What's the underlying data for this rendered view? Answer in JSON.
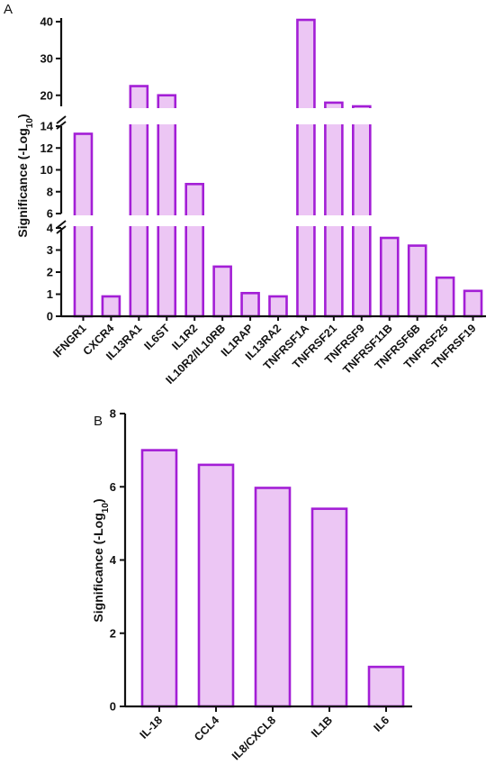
{
  "chart_data": [
    {
      "panel": "A",
      "type": "bar",
      "ylabel": "Significance (-Log10)",
      "broken_axis": true,
      "segments": [
        {
          "ylim": [
            0,
            4
          ],
          "ticks": [
            0,
            1,
            2,
            3,
            4
          ]
        },
        {
          "ylim": [
            6,
            14
          ],
          "ticks": [
            6,
            8,
            10,
            12,
            14
          ]
        },
        {
          "ylim": [
            17,
            41
          ],
          "ticks": [
            20,
            30,
            40
          ]
        }
      ],
      "categories": [
        "IFNGR1",
        "CXCR4",
        "IL13RA1",
        "IL6ST",
        "IL1R2",
        "IL10R2/IL10RB",
        "IL1RAP",
        "IL13RA2",
        "TNFRSF1A",
        "TNFRSF21",
        "TNFRSF9",
        "TNFRSF11B",
        "TNFRSF6B",
        "TNFRSF25",
        "TNFRSF19"
      ],
      "values": [
        13.3,
        0.9,
        22.5,
        20.0,
        8.7,
        2.25,
        1.05,
        0.9,
        40.5,
        18.0,
        17.0,
        3.55,
        3.2,
        1.75,
        1.15
      ],
      "bar_fill": "#ecc6f4",
      "bar_stroke": "#a31ed6"
    },
    {
      "panel": "B",
      "type": "bar",
      "ylabel": "Significance (-Log10)",
      "ylim": [
        0,
        8
      ],
      "ticks": [
        0,
        2,
        4,
        6,
        8
      ],
      "categories": [
        "IL-18",
        "CCL4",
        "IL8/CXCL8",
        "IL1B",
        "IL6"
      ],
      "values": [
        7.0,
        6.6,
        5.97,
        5.4,
        1.08
      ],
      "bar_fill": "#ecc6f4",
      "bar_stroke": "#a31ed6"
    }
  ],
  "ylabel_main": "Significance (-Log",
  "ylabel_sub": "10",
  "ylabel_tail": ")"
}
